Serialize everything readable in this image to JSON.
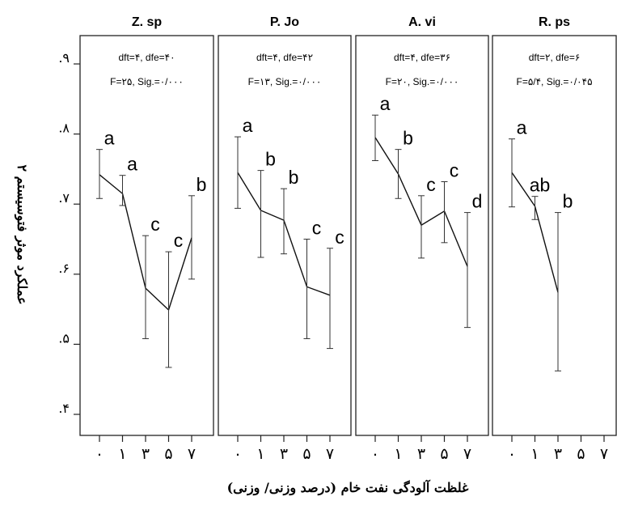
{
  "chart_data": {
    "type": "line",
    "ylabel": "عملکرد موثر فتوسیستم ۲",
    "xlabel": "غلظت آلودگی نفت خام (درصد وزنی/ وزنی)",
    "ylim": [
      0.38,
      0.96
    ],
    "y_ticks": [
      {
        "value": 0.9,
        "label": ".۹"
      },
      {
        "value": 0.8,
        "label": ".۸"
      },
      {
        "value": 0.7,
        "label": ".۷"
      },
      {
        "value": 0.6,
        "label": ".۶"
      },
      {
        "value": 0.5,
        "label": ".۵"
      },
      {
        "value": 0.4,
        "label": ".۴"
      }
    ],
    "x_tick_labels": [
      "۰",
      "۱",
      "۳",
      "۵",
      "۷"
    ],
    "panels": [
      {
        "title": "Z. sp",
        "stat_line1": "dft=۴, dfe=۴۰",
        "stat_line2": "F=۲۵, Sig.=۰/۰۰۰",
        "means": [
          0.742,
          0.715,
          0.58,
          0.549,
          0.652
        ],
        "err_upper": [
          0.778,
          0.741,
          0.655,
          0.632,
          0.712
        ],
        "err_lower": [
          0.708,
          0.698,
          0.508,
          0.467,
          0.593
        ],
        "letters": [
          "a",
          "a",
          "c",
          "c",
          "b"
        ]
      },
      {
        "title": "P. Jo",
        "stat_line1": "dft=۴, dfe=۴۲",
        "stat_line2": "F=۱۳, Sig.=۰/۰۰۰",
        "means": [
          0.745,
          0.691,
          0.677,
          0.582,
          0.57
        ],
        "err_upper": [
          0.796,
          0.748,
          0.722,
          0.65,
          0.637
        ],
        "err_lower": [
          0.694,
          0.624,
          0.629,
          0.508,
          0.494
        ],
        "letters": [
          "a",
          "b",
          "b",
          "c",
          "c"
        ]
      },
      {
        "title": "A. vi",
        "stat_line1": "dft=۴, dfe=۳۶",
        "stat_line2": "F=۲۰, Sig.=۰/۰۰۰",
        "means": [
          0.795,
          0.743,
          0.67,
          0.69,
          0.611
        ],
        "err_upper": [
          0.827,
          0.778,
          0.712,
          0.732,
          0.688
        ],
        "err_lower": [
          0.762,
          0.708,
          0.623,
          0.645,
          0.524
        ],
        "letters": [
          "a",
          "b",
          "c",
          "c",
          "d"
        ]
      },
      {
        "title": "R. ps",
        "stat_line1": "dft=۲, dfe=۶",
        "stat_line2": "F=۵/۴, Sig.=۰/۰۴۵",
        "means": [
          0.745,
          0.697,
          0.574
        ],
        "err_upper": [
          0.793,
          0.711,
          0.688
        ],
        "err_lower": [
          0.696,
          0.678,
          0.462
        ],
        "letters": [
          "a",
          "ab",
          "b"
        ]
      }
    ]
  }
}
